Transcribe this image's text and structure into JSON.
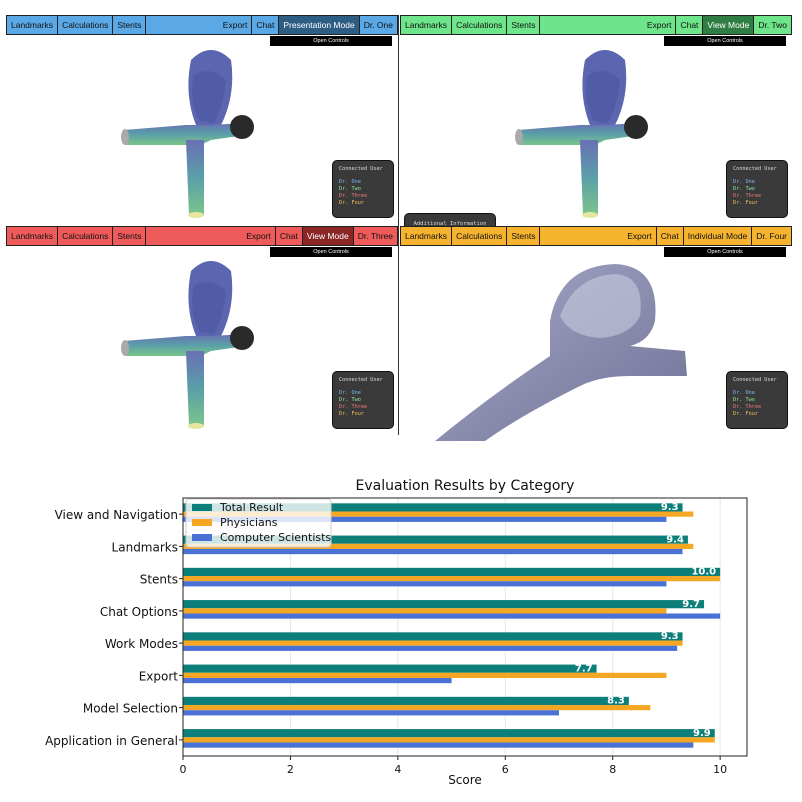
{
  "panels": [
    {
      "menu": [
        "Landmarks",
        "Calculations",
        "Stents"
      ],
      "right": [
        "Export",
        "Chat"
      ],
      "mode": "Presentation Mode",
      "user": "Dr. One",
      "bar_color": "#5aa9e6",
      "mode_color": "#2e5d84",
      "open_controls": "Open Controls",
      "connected_title": "Connected User",
      "additional_info": ""
    },
    {
      "menu": [
        "Landmarks",
        "Calculations",
        "Stents"
      ],
      "right": [
        "Export",
        "Chat"
      ],
      "mode": "View Mode",
      "user": "Dr. Two",
      "bar_color": "#6ee58a",
      "mode_color": "#2f7d45",
      "open_controls": "Open Controls",
      "connected_title": "Connected User",
      "additional_info": "Additional Information"
    },
    {
      "menu": [
        "Landmarks",
        "Calculations",
        "Stents"
      ],
      "right": [
        "Export",
        "Chat"
      ],
      "mode": "View Mode",
      "user": "Dr. Three",
      "bar_color": "#ef5a5a",
      "mode_color": "#8a2626",
      "open_controls": "Open Controls",
      "connected_title": "Connected User",
      "additional_info": ""
    },
    {
      "menu": [
        "Landmarks",
        "Calculations",
        "Stents"
      ],
      "right": [
        "Export",
        "Chat"
      ],
      "mode": "Individual Mode",
      "user": "Dr. Four",
      "bar_color": "#f5b32e",
      "mode_color": "#f5b32e",
      "open_controls": "Open Controls",
      "connected_title": "Connected User",
      "additional_info": ""
    }
  ],
  "connected_users": [
    {
      "name": "Dr. One",
      "color": "#7fb6f0"
    },
    {
      "name": "Dr. Two",
      "color": "#8ee6a0"
    },
    {
      "name": "Dr. Three",
      "color": "#f07a7a"
    },
    {
      "name": "Dr. Four",
      "color": "#f5c15a"
    }
  ],
  "chart_data": {
    "type": "bar",
    "orientation": "horizontal",
    "title": "Evaluation Results by Category",
    "xlabel": "Score",
    "ylabel": "",
    "xlim": [
      0,
      10.5
    ],
    "xticks": [
      0,
      2,
      4,
      6,
      8,
      10
    ],
    "grid": true,
    "legend_position": "top-left",
    "categories": [
      "View and Navigation",
      "Landmarks",
      "Stents",
      "Chat Options",
      "Work Modes",
      "Export",
      "Model Selection",
      "Application in General"
    ],
    "series": [
      {
        "name": "Total Result",
        "color": "#0d7f7a",
        "values": [
          9.3,
          9.4,
          10.0,
          9.7,
          9.3,
          7.7,
          8.3,
          9.9
        ],
        "labels": [
          "9.3",
          "9.4",
          "10.0",
          "9.7",
          "9.3",
          "7.7",
          "8.3",
          "9.9"
        ]
      },
      {
        "name": "Physicians",
        "color": "#f5a623",
        "values": [
          9.5,
          9.5,
          10.0,
          9.0,
          9.3,
          9.0,
          8.7,
          9.9
        ]
      },
      {
        "name": "Computer Scientists",
        "color": "#4a72d6",
        "values": [
          9.0,
          9.3,
          9.0,
          10.0,
          9.2,
          5.0,
          7.0,
          9.5
        ]
      }
    ]
  }
}
